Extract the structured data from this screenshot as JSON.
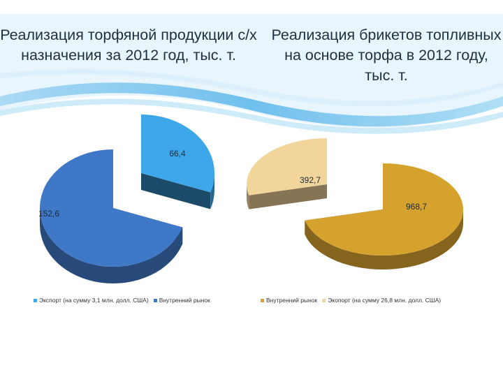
{
  "slide": {
    "title_left": "Реализация торфяной продукции с/х назначения за 2012 год, тыс. т.",
    "title_right": "Реализация брикетов топливных на основе торфа в 2012 году, тыс. т."
  },
  "chart_data": [
    {
      "type": "pie",
      "title": "Реализация торфяной продукции с/х назначения за 2012 год, тыс. т.",
      "slices": [
        {
          "label": "Экспорт (на сумму 3,1 млн. долл. США)",
          "value": 66.4,
          "value_label": "66,4",
          "color": "#3ea7ea",
          "exploded": true
        },
        {
          "label": "Внутренний рынок",
          "value": 152.6,
          "value_label": "152,6",
          "color": "#3f78c6",
          "exploded": false
        }
      ],
      "legend": {
        "position": "bottom",
        "entries": [
          "Экспорт (на сумму 3,1 млн. долл. США)",
          "Внутренний рынок"
        ]
      }
    },
    {
      "type": "pie",
      "title": "Реализация брикетов топливных на основе торфа в 2012 году, тыс. т.",
      "slices": [
        {
          "label": "Внутренний рынок",
          "value": 968.7,
          "value_label": "968,7",
          "color": "#d6a22e",
          "exploded": false
        },
        {
          "label": "Экопорт (на сумму 26,8 млн. долл. США)",
          "value": 392.7,
          "value_label": "392,7",
          "color": "#f1d59a",
          "exploded": true
        }
      ],
      "legend": {
        "position": "bottom",
        "entries": [
          "Внутренний рынок",
          "Экопорт (на сумму 26,8 млн. долл. США)"
        ]
      }
    }
  ]
}
